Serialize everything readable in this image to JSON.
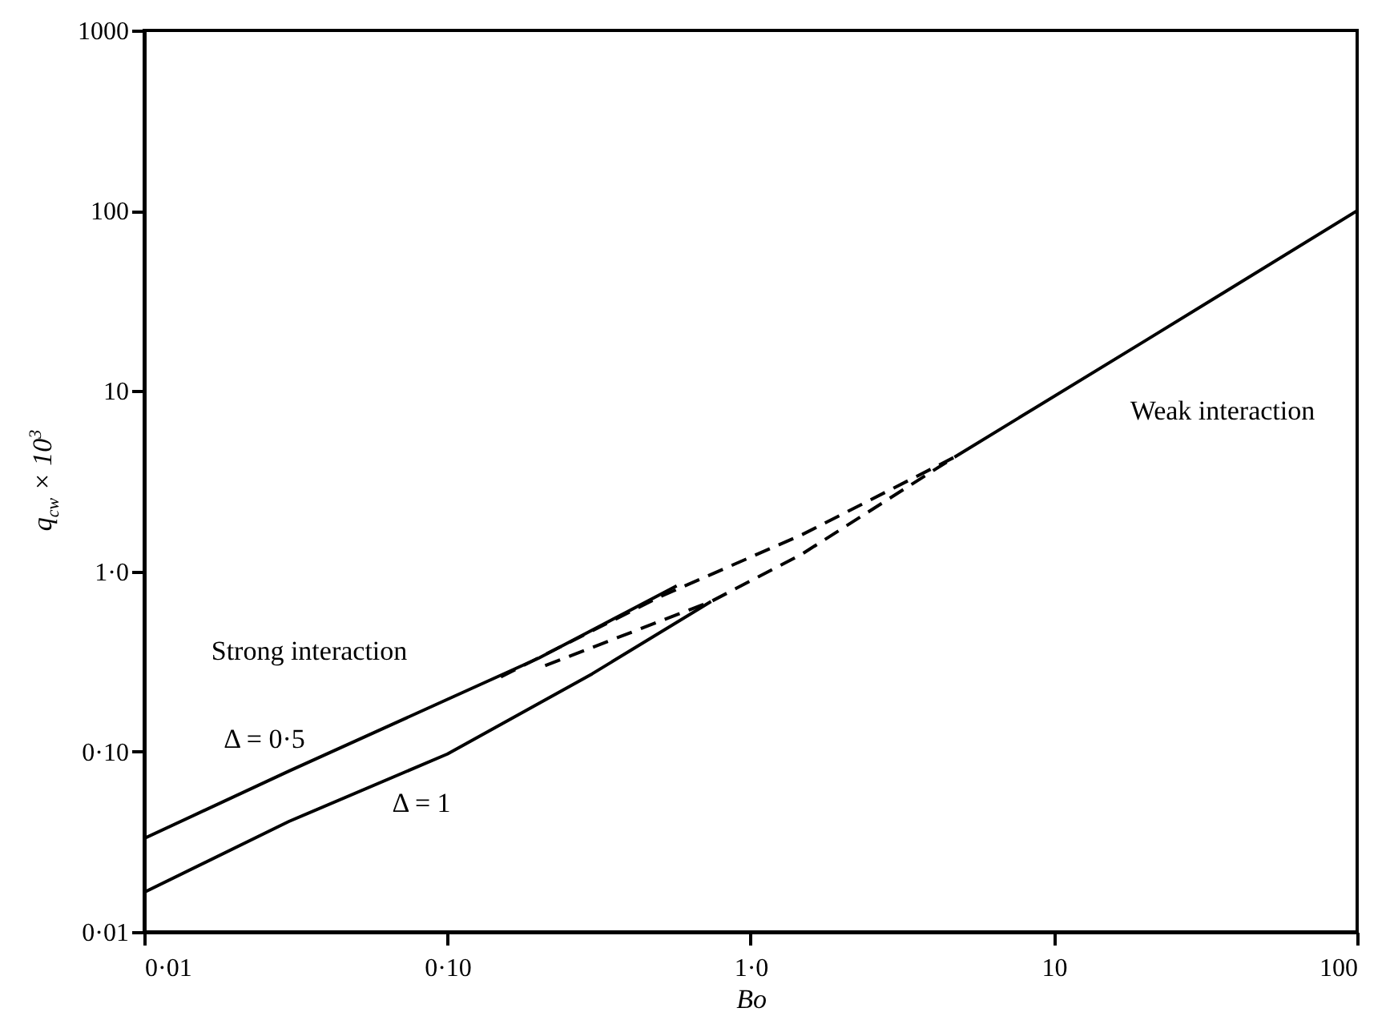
{
  "chart_data": {
    "type": "line",
    "xlabel": "Bo",
    "ylabel": "q$_{cw}$ × 10$^{3}$",
    "log": "xy",
    "xlim": [
      0.01,
      100
    ],
    "ylim": [
      0.01,
      1000
    ],
    "xticks": [
      {
        "value": 0.01,
        "label": "0·01"
      },
      {
        "value": 0.1,
        "label": "0·10"
      },
      {
        "value": 1,
        "label": "1·0"
      },
      {
        "value": 10,
        "label": "10"
      },
      {
        "value": 100,
        "label": "100"
      }
    ],
    "yticks": [
      {
        "value": 0.01,
        "label": "0·01"
      },
      {
        "value": 0.1,
        "label": "0·10"
      },
      {
        "value": 1,
        "label": "1·0"
      },
      {
        "value": 10,
        "label": "10"
      },
      {
        "value": 100,
        "label": "100"
      },
      {
        "value": 1000,
        "label": "1000"
      }
    ],
    "grid": false,
    "marker": "none",
    "series": [
      {
        "color": "#000000",
        "line_style": "solid",
        "x": [
          0.01,
          0.03,
          0.1,
          0.2,
          0.57
        ],
        "values": [
          0.033,
          0.078,
          0.195,
          0.33,
          0.83
        ]
      },
      {
        "color": "#000000",
        "line_style": "solid",
        "x": [
          0.01,
          0.03,
          0.1,
          0.3,
          0.74
        ],
        "values": [
          0.0166,
          0.041,
          0.097,
          0.27,
          0.68
        ]
      },
      {
        "color": "#000000",
        "line_style": "dashed",
        "x": [
          0.15,
          0.5,
          1.48,
          4.7
        ],
        "values": [
          0.26,
          0.72,
          1.6,
          4.3
        ]
      },
      {
        "color": "#000000",
        "line_style": "dashed",
        "x": [
          0.21,
          0.74,
          1.48,
          4.7
        ],
        "values": [
          0.3,
          0.68,
          1.25,
          4.3
        ]
      },
      {
        "color": "#000000",
        "line_style": "solid",
        "x": [
          4.7,
          20,
          100
        ],
        "values": [
          4.3,
          19,
          100
        ]
      }
    ],
    "annotations": [
      "Strong interaction",
      "Δ = 0·5",
      "Δ = 1",
      "Weak interaction"
    ]
  }
}
